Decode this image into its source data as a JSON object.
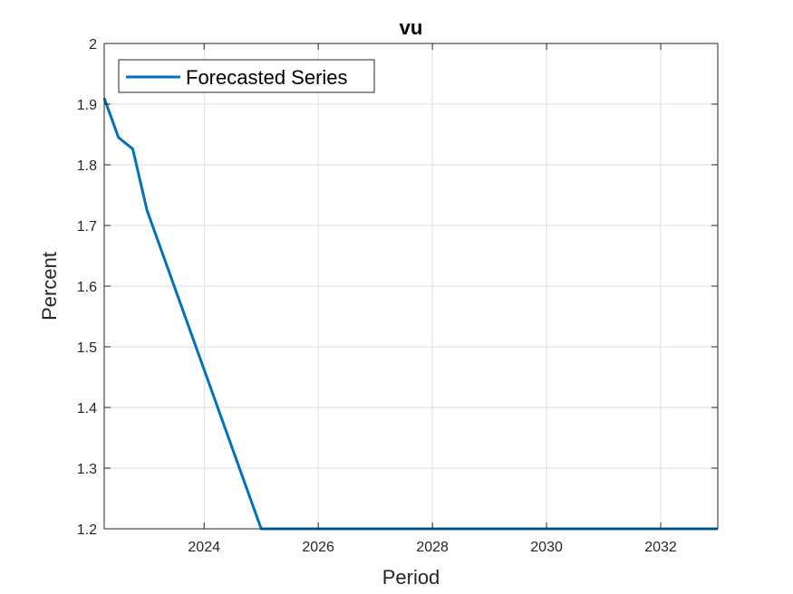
{
  "chart_data": {
    "type": "line",
    "title": "vu",
    "xlabel": "Period",
    "ylabel": "Percent",
    "xlim": [
      2022.25,
      2033.0
    ],
    "ylim": [
      1.2,
      2.0
    ],
    "x_ticks": [
      2024,
      2026,
      2028,
      2030,
      2032
    ],
    "y_ticks": [
      1.2,
      1.3,
      1.4,
      1.5,
      1.6,
      1.7,
      1.8,
      1.9,
      2.0
    ],
    "x_tick_labels": [
      "2024",
      "2026",
      "2028",
      "2030",
      "2032"
    ],
    "y_tick_labels": [
      "1.2",
      "1.3",
      "1.4",
      "1.5",
      "1.6",
      "1.7",
      "1.8",
      "1.9",
      "2"
    ],
    "grid": true,
    "legend_position": "top-left",
    "series": [
      {
        "name": "Forecasted Series",
        "color": "#0072BD",
        "x": [
          2022.25,
          2022.5,
          2022.75,
          2023.0,
          2025.0,
          2026.0,
          2027.0,
          2028.0,
          2029.0,
          2030.0,
          2031.0,
          2032.0,
          2033.0
        ],
        "y": [
          1.91,
          1.845,
          1.826,
          1.725,
          1.2,
          1.2,
          1.2,
          1.2,
          1.2,
          1.2,
          1.2,
          1.2,
          1.2
        ]
      }
    ]
  }
}
